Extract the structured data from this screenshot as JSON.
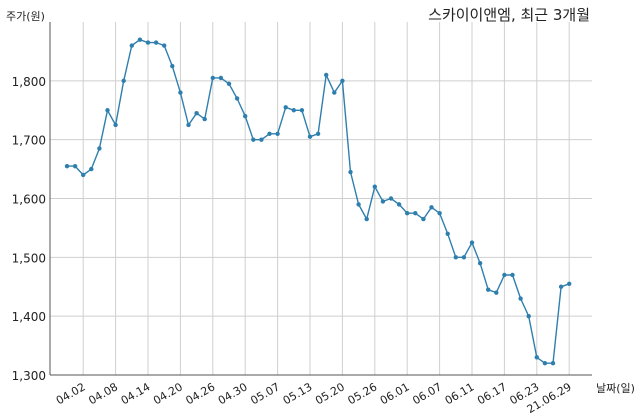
{
  "chart_data": {
    "type": "line",
    "title": "스카이이앤엠, 최근 3개월",
    "ylabel": "주가(원)",
    "xlabel": "날짜(일)",
    "ylim": [
      1300,
      1900
    ],
    "yticks": [
      1300,
      1400,
      1500,
      1600,
      1700,
      1800
    ],
    "ytick_labels": [
      "1,300",
      "1,400",
      "1,500",
      "1,600",
      "1,700",
      "1,800"
    ],
    "xtick_labels": [
      "04.02",
      "04.08",
      "04.14",
      "04.20",
      "04.26",
      "04.30",
      "05.07",
      "05.13",
      "05.20",
      "05.26",
      "06.01",
      "06.07",
      "06.11",
      "06.17",
      "06.23",
      "21.06.29"
    ],
    "xtick_index": [
      2,
      6,
      10,
      14,
      18,
      22,
      26,
      30,
      34,
      38,
      42,
      46,
      50,
      54,
      58,
      62
    ],
    "grid": true,
    "line_color": "#2f7fae",
    "series": [
      {
        "values": [
          1655,
          1655,
          1640,
          1650,
          1685,
          1750,
          1725,
          1800,
          1860,
          1870,
          1865,
          1865,
          1860,
          1825,
          1780,
          1725,
          1745,
          1735,
          1805,
          1805,
          1795,
          1770,
          1740,
          1700,
          1700,
          1710,
          1710,
          1755,
          1750,
          1750,
          1705,
          1710,
          1810,
          1780,
          1800,
          1645,
          1590,
          1565,
          1620,
          1595,
          1600,
          1590,
          1575,
          1575,
          1565,
          1585,
          1575,
          1540,
          1500,
          1500,
          1525,
          1490,
          1445,
          1440,
          1470,
          1470,
          1430,
          1400,
          1330,
          1320,
          1320,
          1450,
          1455
        ]
      }
    ]
  }
}
